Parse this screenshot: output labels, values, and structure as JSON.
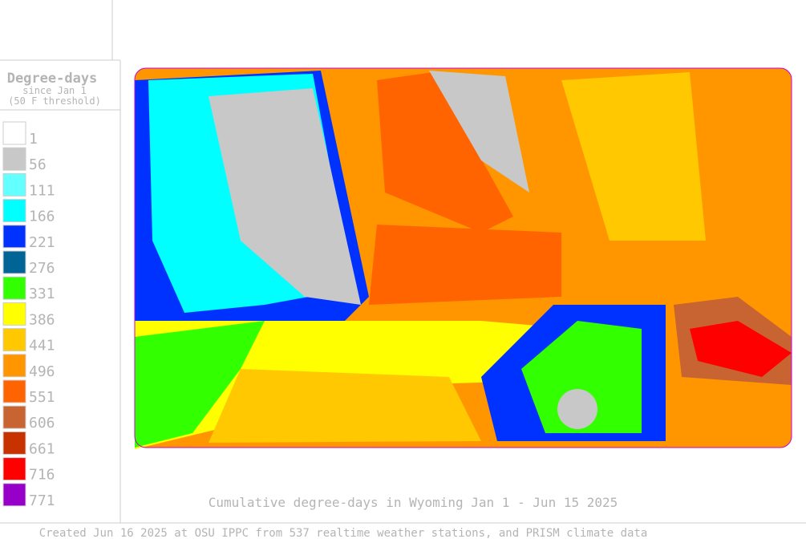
{
  "legend": {
    "title": "Degree-days",
    "subtitle": "since Jan 1",
    "note": "(50 F threshold)",
    "items": [
      {
        "value": 1,
        "color": "#ffffff"
      },
      {
        "value": 56,
        "color": "#c8c8c8"
      },
      {
        "value": 111,
        "color": "#64ffff"
      },
      {
        "value": 166,
        "color": "#00ffff"
      },
      {
        "value": 221,
        "color": "#0032ff"
      },
      {
        "value": 276,
        "color": "#006496"
      },
      {
        "value": 331,
        "color": "#32ff00"
      },
      {
        "value": 386,
        "color": "#ffff00"
      },
      {
        "value": 441,
        "color": "#ffc800"
      },
      {
        "value": 496,
        "color": "#ff9600"
      },
      {
        "value": 551,
        "color": "#ff6400"
      },
      {
        "value": 606,
        "color": "#c86432"
      },
      {
        "value": 661,
        "color": "#c83200"
      },
      {
        "value": 716,
        "color": "#ff0000"
      },
      {
        "value": 771,
        "color": "#9600c8"
      }
    ]
  },
  "caption": "Cumulative degree-days in Wyoming  Jan 1 - Jun 15 2025",
  "footer": "Created Jun 16 2025 at OSU IPPC from 537 realtime weather stations, and PRISM climate data"
}
